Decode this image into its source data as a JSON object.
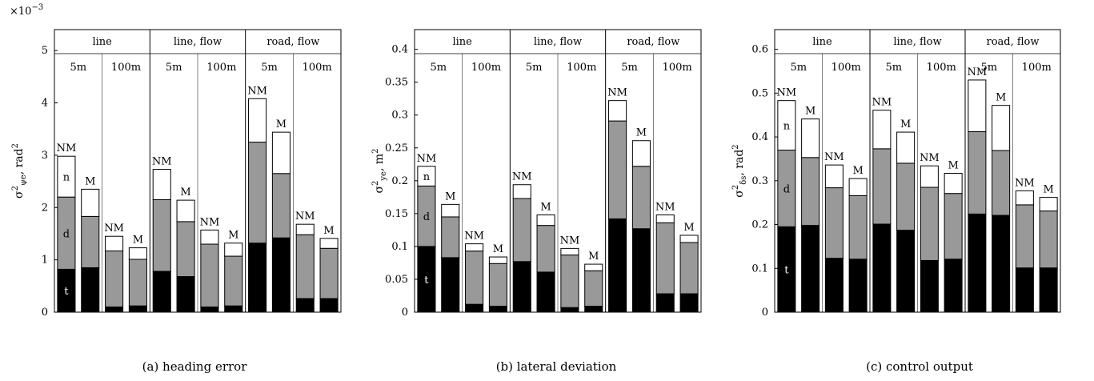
{
  "figure": {
    "scale_factor_label": "×10",
    "scale_factor_exponent": "−3",
    "segment_labels": [
      "t",
      "d",
      "n"
    ],
    "groups": [
      {
        "label": "line",
        "subgroups": [
          "5m",
          "100m"
        ]
      },
      {
        "label": "line, flow",
        "subgroups": [
          "5m",
          "100m"
        ]
      },
      {
        "label": "road, flow",
        "subgroups": [
          "5m",
          "100m"
        ]
      }
    ],
    "bar_labels": [
      "NM",
      "M"
    ]
  },
  "chart_data": [
    {
      "type": "bar",
      "stacked": true,
      "caption": "(a) heading error",
      "ylabel_symbol": "σ",
      "ylabel_sup": "2",
      "ylabel_sub": "ψe",
      "ylabel_unit": ", rad",
      "ylabel_unit_sup": "2",
      "ylim": [
        0,
        5.4
      ],
      "yticks": [
        0,
        1,
        2,
        3,
        4,
        5
      ],
      "ytick_labels": [
        "0",
        "1",
        "2",
        "3",
        "4",
        "5"
      ],
      "scale": "×10⁻³",
      "stack_series": [
        "t",
        "d",
        "n"
      ],
      "bars": [
        {
          "group": "line",
          "sub": "5m",
          "label": "NM",
          "t": 0.82,
          "d": 1.38,
          "n": 0.78
        },
        {
          "group": "line",
          "sub": "5m",
          "label": "M",
          "t": 0.85,
          "d": 0.98,
          "n": 0.52
        },
        {
          "group": "line",
          "sub": "100m",
          "label": "NM",
          "t": 0.1,
          "d": 1.07,
          "n": 0.28
        },
        {
          "group": "line",
          "sub": "100m",
          "label": "M",
          "t": 0.12,
          "d": 0.89,
          "n": 0.22
        },
        {
          "group": "line, flow",
          "sub": "5m",
          "label": "NM",
          "t": 0.78,
          "d": 1.37,
          "n": 0.58
        },
        {
          "group": "line, flow",
          "sub": "5m",
          "label": "M",
          "t": 0.68,
          "d": 1.05,
          "n": 0.41
        },
        {
          "group": "line, flow",
          "sub": "100m",
          "label": "NM",
          "t": 0.1,
          "d": 1.2,
          "n": 0.27
        },
        {
          "group": "line, flow",
          "sub": "100m",
          "label": "M",
          "t": 0.12,
          "d": 0.95,
          "n": 0.25
        },
        {
          "group": "road, flow",
          "sub": "5m",
          "label": "NM",
          "t": 1.32,
          "d": 1.93,
          "n": 0.83
        },
        {
          "group": "road, flow",
          "sub": "5m",
          "label": "M",
          "t": 1.42,
          "d": 1.23,
          "n": 0.79
        },
        {
          "group": "road, flow",
          "sub": "100m",
          "label": "NM",
          "t": 0.26,
          "d": 1.22,
          "n": 0.2
        },
        {
          "group": "road, flow",
          "sub": "100m",
          "label": "M",
          "t": 0.26,
          "d": 0.96,
          "n": 0.19
        }
      ]
    },
    {
      "type": "bar",
      "stacked": true,
      "caption": "(b) lateral deviation",
      "ylabel_symbol": "σ",
      "ylabel_sup": "2",
      "ylabel_sub": "ye",
      "ylabel_unit": ", m",
      "ylabel_unit_sup": "2",
      "ylim": [
        0,
        0.43
      ],
      "yticks": [
        0,
        0.05,
        0.1,
        0.15,
        0.2,
        0.25,
        0.3,
        0.35,
        0.4
      ],
      "ytick_labels": [
        "0",
        "0.05",
        "0.1",
        "0.15",
        "0.2",
        "0.25",
        "0.3",
        "0.35",
        "0.4"
      ],
      "stack_series": [
        "t",
        "d",
        "n"
      ],
      "bars": [
        {
          "group": "line",
          "sub": "5m",
          "label": "NM",
          "t": 0.1,
          "d": 0.092,
          "n": 0.03
        },
        {
          "group": "line",
          "sub": "5m",
          "label": "M",
          "t": 0.083,
          "d": 0.062,
          "n": 0.019
        },
        {
          "group": "line",
          "sub": "100m",
          "label": "NM",
          "t": 0.012,
          "d": 0.081,
          "n": 0.011
        },
        {
          "group": "line",
          "sub": "100m",
          "label": "M",
          "t": 0.009,
          "d": 0.065,
          "n": 0.01
        },
        {
          "group": "line, flow",
          "sub": "5m",
          "label": "NM",
          "t": 0.077,
          "d": 0.096,
          "n": 0.021
        },
        {
          "group": "line, flow",
          "sub": "5m",
          "label": "M",
          "t": 0.061,
          "d": 0.071,
          "n": 0.016
        },
        {
          "group": "line, flow",
          "sub": "100m",
          "label": "NM",
          "t": 0.007,
          "d": 0.08,
          "n": 0.01
        },
        {
          "group": "line, flow",
          "sub": "100m",
          "label": "M",
          "t": 0.009,
          "d": 0.054,
          "n": 0.01
        },
        {
          "group": "road, flow",
          "sub": "5m",
          "label": "NM",
          "t": 0.142,
          "d": 0.149,
          "n": 0.031
        },
        {
          "group": "road, flow",
          "sub": "5m",
          "label": "M",
          "t": 0.127,
          "d": 0.095,
          "n": 0.039
        },
        {
          "group": "road, flow",
          "sub": "100m",
          "label": "NM",
          "t": 0.028,
          "d": 0.108,
          "n": 0.012
        },
        {
          "group": "road, flow",
          "sub": "100m",
          "label": "M",
          "t": 0.028,
          "d": 0.078,
          "n": 0.011
        }
      ]
    },
    {
      "type": "bar",
      "stacked": true,
      "caption": "(c) control output",
      "ylabel_symbol": "σ",
      "ylabel_sup": "2",
      "ylabel_sub": "δs",
      "ylabel_unit": ", rad",
      "ylabel_unit_sup": "2",
      "ylim": [
        0,
        0.645
      ],
      "yticks": [
        0,
        0.1,
        0.2,
        0.3,
        0.4,
        0.5,
        0.6
      ],
      "ytick_labels": [
        "0",
        "0.1",
        "0.2",
        "0.3",
        "0.4",
        "0.5",
        "0.6"
      ],
      "stack_series": [
        "t",
        "d",
        "n"
      ],
      "bars": [
        {
          "group": "line",
          "sub": "5m",
          "label": "NM",
          "t": 0.195,
          "d": 0.175,
          "n": 0.113
        },
        {
          "group": "line",
          "sub": "5m",
          "label": "M",
          "t": 0.198,
          "d": 0.155,
          "n": 0.088
        },
        {
          "group": "line",
          "sub": "100m",
          "label": "NM",
          "t": 0.123,
          "d": 0.161,
          "n": 0.052
        },
        {
          "group": "line",
          "sub": "100m",
          "label": "M",
          "t": 0.121,
          "d": 0.145,
          "n": 0.039
        },
        {
          "group": "line, flow",
          "sub": "5m",
          "label": "NM",
          "t": 0.201,
          "d": 0.172,
          "n": 0.088
        },
        {
          "group": "line, flow",
          "sub": "5m",
          "label": "M",
          "t": 0.187,
          "d": 0.153,
          "n": 0.071
        },
        {
          "group": "line, flow",
          "sub": "100m",
          "label": "NM",
          "t": 0.118,
          "d": 0.167,
          "n": 0.049
        },
        {
          "group": "line, flow",
          "sub": "100m",
          "label": "M",
          "t": 0.121,
          "d": 0.15,
          "n": 0.046
        },
        {
          "group": "road, flow",
          "sub": "5m",
          "label": "NM",
          "t": 0.224,
          "d": 0.188,
          "n": 0.118
        },
        {
          "group": "road, flow",
          "sub": "5m",
          "label": "M",
          "t": 0.221,
          "d": 0.148,
          "n": 0.103
        },
        {
          "group": "road, flow",
          "sub": "100m",
          "label": "NM",
          "t": 0.101,
          "d": 0.144,
          "n": 0.032
        },
        {
          "group": "road, flow",
          "sub": "100m",
          "label": "M",
          "t": 0.101,
          "d": 0.13,
          "n": 0.031
        }
      ]
    }
  ]
}
